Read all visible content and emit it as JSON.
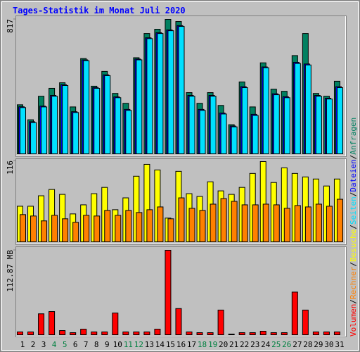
{
  "chart_data": [
    {
      "type": "bar",
      "title": "Tages-Statistik im Monat Juli 2020",
      "ylim": [
        0,
        817
      ],
      "yticks": [
        817
      ],
      "series": [
        {
          "name": "Anfragen",
          "color": "#008060",
          "values": [
            298,
            207,
            350,
            398,
            432,
            285,
            579,
            411,
            501,
            367,
            307,
            584,
            731,
            757,
            817,
            804,
            372,
            307,
            372,
            294,
            177,
            437,
            285,
            553,
            393,
            380,
            597,
            731,
            367,
            350,
            441
          ]
        },
        {
          "name": "Dateien",
          "color": "#0000ff",
          "values": [
            286,
            195,
            290,
            355,
            420,
            256,
            571,
            403,
            480,
            346,
            270,
            576,
            705,
            736,
            753,
            779,
            355,
            270,
            355,
            248,
            169,
            408,
            240,
            528,
            365,
            347,
            556,
            546,
            355,
            338,
            408
          ]
        },
        {
          "name": "Seiten",
          "color": "#00e0ff",
          "values": [
            281,
            190,
            285,
            350,
            415,
            251,
            566,
            398,
            475,
            341,
            264,
            571,
            700,
            731,
            748,
            774,
            350,
            264,
            350,
            242,
            164,
            402,
            233,
            523,
            359,
            341,
            549,
            540,
            350,
            333,
            402
          ]
        }
      ]
    },
    {
      "type": "bar",
      "ylim": [
        0,
        116
      ],
      "yticks": [
        116
      ],
      "series": [
        {
          "name": "Besuche",
          "color": "#ffff00",
          "values": [
            51,
            51,
            66,
            75,
            68,
            40,
            53,
            69,
            78,
            46,
            63,
            94,
            111,
            103,
            34,
            101,
            69,
            65,
            86,
            73,
            68,
            78,
            98,
            115,
            85,
            106,
            98,
            93,
            90,
            80,
            90
          ]
        },
        {
          "name": "Rechner",
          "color": "#ff8000",
          "values": [
            39,
            37,
            30,
            38,
            33,
            28,
            38,
            37,
            45,
            38,
            45,
            42,
            46,
            50,
            33,
            63,
            48,
            45,
            54,
            62,
            58,
            53,
            53,
            54,
            53,
            48,
            52,
            50,
            54,
            51,
            61
          ]
        }
      ]
    },
    {
      "type": "bar",
      "ylim": [
        0,
        112.87
      ],
      "yticks": [
        {
          "value": 112.87,
          "label": "112.87 MB"
        }
      ],
      "categories": [
        "1",
        "2",
        "3",
        "4",
        "5",
        "6",
        "7",
        "8",
        "9",
        "10",
        "11",
        "12",
        "13",
        "14",
        "15",
        "16",
        "17",
        "18",
        "19",
        "20",
        "21",
        "22",
        "23",
        "24",
        "25",
        "26",
        "27",
        "28",
        "29",
        "30",
        "31"
      ],
      "highlight_categories": [
        "4",
        "5",
        "11",
        "12",
        "18",
        "19",
        "25",
        "26"
      ],
      "highlight_color": "#008040",
      "legend_separator": "/",
      "series": [
        {
          "name": "Volumen",
          "color": "#ff0000",
          "values": [
            3.8,
            3.8,
            28,
            31,
            5.6,
            2.8,
            7.5,
            3.8,
            3.8,
            29,
            3.8,
            3.8,
            3.8,
            7.5,
            112.87,
            35,
            3.8,
            2.8,
            2.8,
            33,
            0.9,
            2.8,
            2.8,
            4.7,
            2.8,
            2.8,
            57,
            33,
            3.8,
            3.8,
            3.8
          ]
        }
      ]
    }
  ]
}
